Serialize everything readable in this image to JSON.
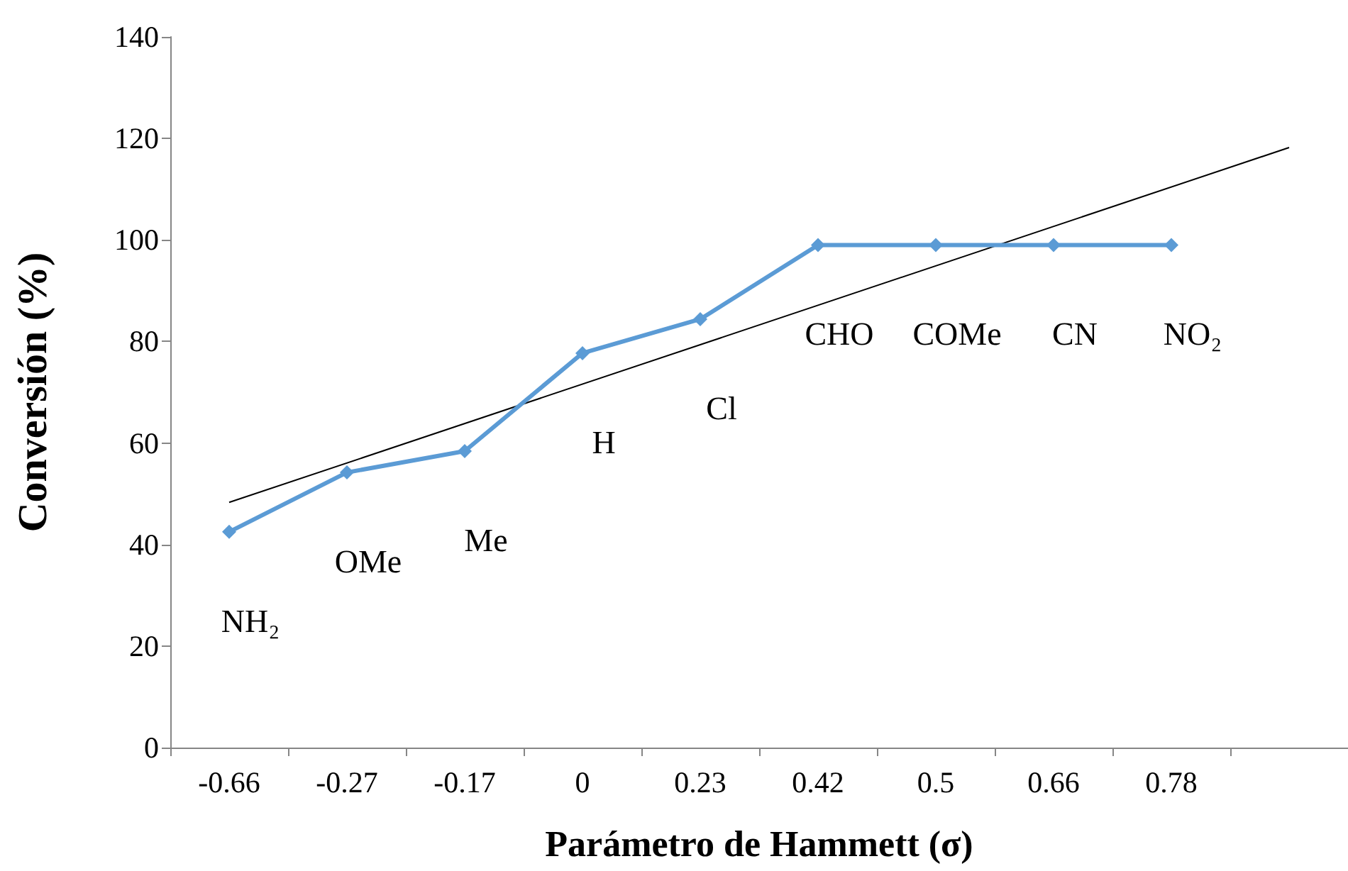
{
  "chart_data": {
    "type": "line",
    "xlabel": "Parámetro de Hammett (σ)",
    "ylabel": "Conversión (%)",
    "categories": [
      "-0.66",
      "-0.27",
      "-0.17",
      "0",
      "0.23",
      "0.42",
      "0.5",
      "0.66",
      "0.78",
      null
    ],
    "series": [
      {
        "color": "#5b9bd5",
        "marker": "diamond",
        "values": [
          42.5,
          54.2,
          58.4,
          77.7,
          84.4,
          99,
          99,
          99,
          99,
          null
        ]
      },
      {
        "type": "line",
        "color": "#000000",
        "marker": "none",
        "values": [
          48.3,
          null,
          null,
          null,
          null,
          null,
          null,
          null,
          null,
          118.2
        ]
      }
    ],
    "ylim": [
      0,
      140
    ],
    "yticks": [
      0,
      20,
      40,
      60,
      80,
      100,
      120,
      140
    ],
    "grid": false,
    "annotations": [
      {
        "text": "NH₂",
        "x": "-0.66",
        "y": 42.5
      },
      {
        "text": "OMe",
        "x": "-0.27",
        "y": 54.2
      },
      {
        "text": "Me",
        "x": "-0.17",
        "y": 58.4
      },
      {
        "text": "H",
        "x": "0",
        "y": 77.7
      },
      {
        "text": "Cl",
        "x": "0.23",
        "y": 84.4
      },
      {
        "text": "CHO",
        "x": "0.42",
        "y": 99
      },
      {
        "text": "COMe",
        "x": "0.5",
        "y": 99
      },
      {
        "text": "CN",
        "x": "0.66",
        "y": 99
      },
      {
        "text": "NO₂",
        "x": "0.78",
        "y": 99
      }
    ]
  }
}
